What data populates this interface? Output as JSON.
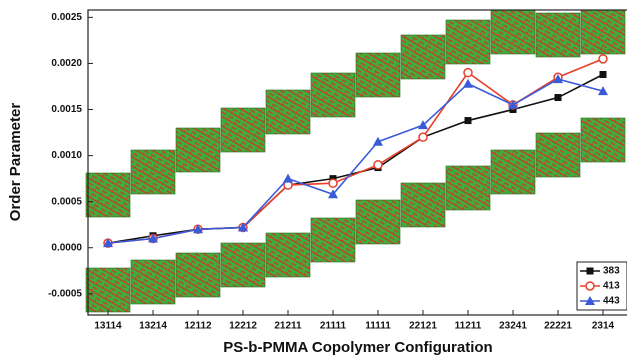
{
  "chart_data": {
    "type": "line",
    "xlabel": "PS-b-PMMA Copolymer Configuration",
    "ylabel": "Order Parameter",
    "categories": [
      "13114",
      "13214",
      "12112",
      "12212",
      "21211",
      "21111",
      "11111",
      "22121",
      "11211",
      "23241",
      "22221",
      "2314"
    ],
    "ylim": [
      -0.00073,
      0.00258
    ],
    "yticks": [
      -0.0005,
      {
        "value": 0,
        "label": "0.0000"
      },
      0.0005,
      {
        "value": 0.001,
        "label": "0.0010"
      },
      0.0015,
      {
        "value": 0.002,
        "label": "0.0020"
      },
      0.0025
    ],
    "legend": "lower right",
    "series": [
      {
        "name": "383",
        "color": "#111111",
        "marker": "square",
        "values": [
          5e-05,
          0.00013,
          0.0002,
          0.00022,
          0.00068,
          0.00075,
          0.00087,
          0.0012,
          0.00138,
          0.0015,
          0.00163,
          0.00188
        ]
      },
      {
        "name": "413",
        "color": "#e8402a",
        "marker": "circle",
        "values": [
          5e-05,
          0.0001,
          0.0002,
          0.00022,
          0.00068,
          0.0007,
          0.0009,
          0.0012,
          0.0019,
          0.00155,
          0.00185,
          0.00205
        ]
      },
      {
        "name": "443",
        "color": "#3a5bd9",
        "marker": "triangle",
        "values": [
          5e-05,
          0.0001,
          0.0002,
          0.00022,
          0.00075,
          0.00058,
          0.00115,
          0.00133,
          0.00178,
          0.00155,
          0.00183,
          0.0017
        ]
      }
    ]
  }
}
